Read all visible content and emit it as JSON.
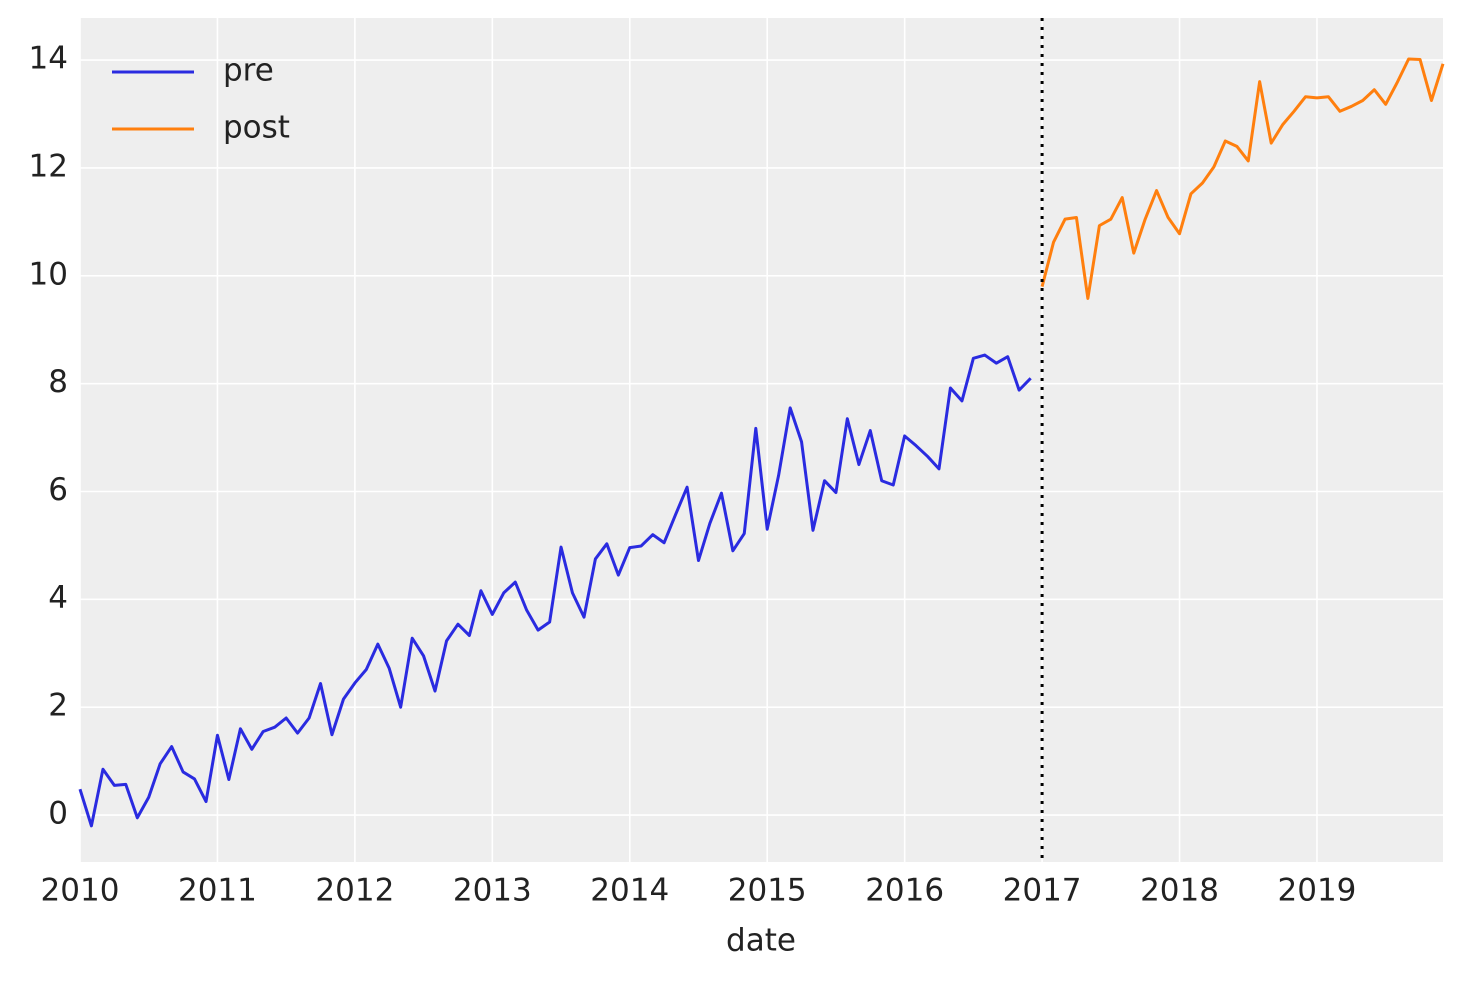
{
  "chart_data": {
    "type": "line",
    "x_label": "date",
    "xlim": [
      2010,
      2019.917
    ],
    "ylim": [
      -0.87,
      14.78
    ],
    "xticks": [
      2010,
      2011,
      2012,
      2013,
      2014,
      2015,
      2016,
      2017,
      2018,
      2019
    ],
    "yticks": [
      0,
      2,
      4,
      6,
      8,
      10,
      12,
      14
    ],
    "grid": true,
    "legend": "upper left",
    "threshold": 2017,
    "series": [
      {
        "name": "pre",
        "color": "#2a2be0",
        "x": [
          2010,
          2010.083,
          2010.167,
          2010.25,
          2010.333,
          2010.417,
          2010.5,
          2010.583,
          2010.667,
          2010.75,
          2010.833,
          2010.917,
          2011,
          2011.083,
          2011.167,
          2011.25,
          2011.333,
          2011.417,
          2011.5,
          2011.583,
          2011.667,
          2011.75,
          2011.833,
          2011.917,
          2012,
          2012.083,
          2012.167,
          2012.25,
          2012.333,
          2012.417,
          2012.5,
          2012.583,
          2012.667,
          2012.75,
          2012.833,
          2012.917,
          2013,
          2013.083,
          2013.167,
          2013.25,
          2013.333,
          2013.417,
          2013.5,
          2013.583,
          2013.667,
          2013.75,
          2013.833,
          2013.917,
          2014,
          2014.083,
          2014.167,
          2014.25,
          2014.333,
          2014.417,
          2014.5,
          2014.583,
          2014.667,
          2014.75,
          2014.833,
          2014.917,
          2015,
          2015.083,
          2015.167,
          2015.25,
          2015.333,
          2015.417,
          2015.5,
          2015.583,
          2015.667,
          2015.75,
          2015.833,
          2015.917,
          2016,
          2016.083,
          2016.167,
          2016.25,
          2016.333,
          2016.417,
          2016.5,
          2016.583,
          2016.667,
          2016.75,
          2016.833,
          2016.917
        ],
        "values": [
          0.48,
          -0.2,
          0.85,
          0.55,
          0.57,
          -0.05,
          0.33,
          0.95,
          1.27,
          0.8,
          0.67,
          0.25,
          1.48,
          0.66,
          1.6,
          1.22,
          1.55,
          1.63,
          1.8,
          1.52,
          1.8,
          2.44,
          1.49,
          2.15,
          2.45,
          2.7,
          3.17,
          2.72,
          2.0,
          3.28,
          2.95,
          2.3,
          3.23,
          3.54,
          3.33,
          4.16,
          3.72,
          4.12,
          4.32,
          3.8,
          3.43,
          3.58,
          4.97,
          4.12,
          3.67,
          4.75,
          5.03,
          4.45,
          4.96,
          4.99,
          5.2,
          5.05,
          5.57,
          6.08,
          4.72,
          5.41,
          5.97,
          4.9,
          5.22,
          7.17,
          5.3,
          6.3,
          7.55,
          6.92,
          5.28,
          6.2,
          5.98,
          7.35,
          6.5,
          7.13,
          6.2,
          6.12,
          7.03,
          6.85,
          6.65,
          6.42,
          7.92,
          7.68,
          8.47,
          8.53,
          8.38,
          8.5,
          7.88,
          8.1
        ]
      },
      {
        "name": "post",
        "color": "#ff7f0e",
        "x": [
          2017,
          2017.083,
          2017.167,
          2017.25,
          2017.333,
          2017.417,
          2017.5,
          2017.583,
          2017.667,
          2017.75,
          2017.833,
          2017.917,
          2018,
          2018.083,
          2018.167,
          2018.25,
          2018.333,
          2018.417,
          2018.5,
          2018.583,
          2018.667,
          2018.75,
          2018.833,
          2018.917,
          2019,
          2019.083,
          2019.167,
          2019.25,
          2019.333,
          2019.417,
          2019.5,
          2019.583,
          2019.667,
          2019.75,
          2019.833,
          2019.917
        ],
        "values": [
          9.8,
          10.62,
          11.05,
          11.08,
          9.58,
          10.93,
          11.05,
          11.45,
          10.42,
          11.05,
          11.58,
          11.08,
          10.78,
          11.52,
          11.72,
          12.02,
          12.5,
          12.4,
          12.13,
          13.6,
          12.46,
          12.8,
          13.05,
          13.32,
          13.3,
          13.32,
          13.05,
          13.14,
          13.25,
          13.45,
          13.18,
          13.58,
          14.02,
          14.01,
          13.25,
          13.93
        ]
      }
    ]
  }
}
